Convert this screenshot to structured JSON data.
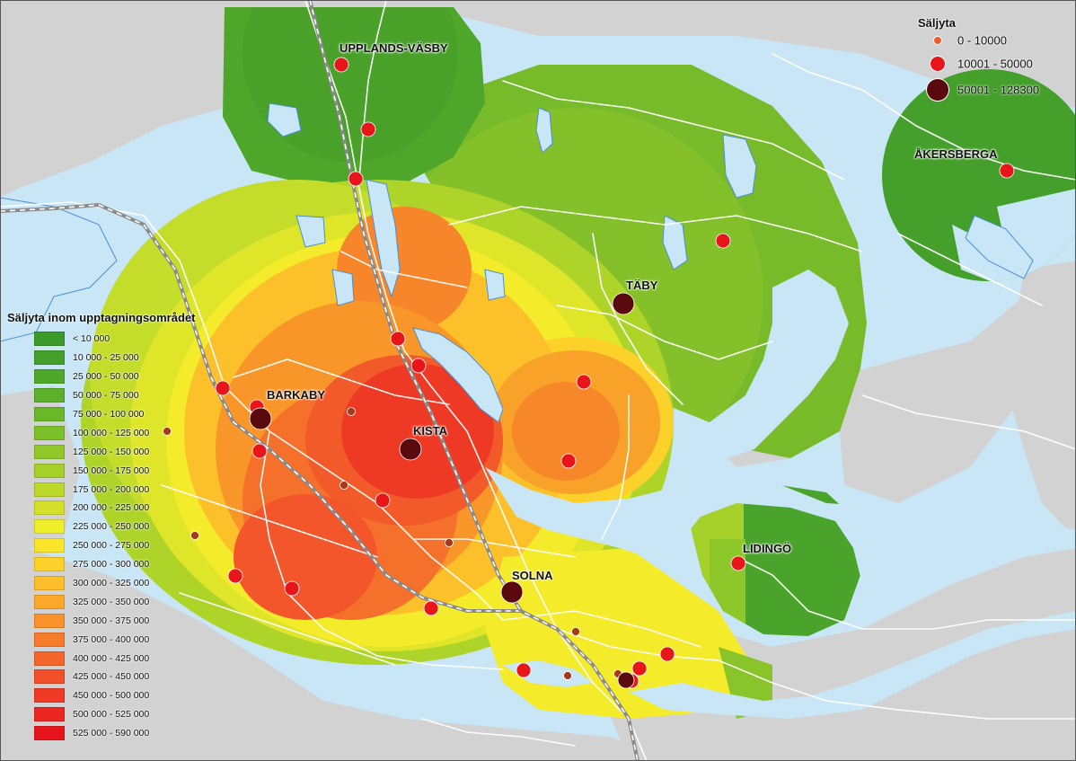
{
  "map": {
    "places": [
      {
        "name": "UPPLANDS-VÄSBY"
      },
      {
        "name": "ÅKERSBERGA"
      },
      {
        "name": "TÄBY"
      },
      {
        "name": "BARKABY"
      },
      {
        "name": "KISTA"
      },
      {
        "name": "SOLNA"
      },
      {
        "name": "LIDINGÖ"
      }
    ]
  },
  "legend_size": {
    "title": "Säljyta",
    "items": [
      {
        "label": "0 - 10000",
        "color": "#f05a28"
      },
      {
        "label": "10001 - 50000",
        "color": "#e8151a"
      },
      {
        "label": "50001 - 128300",
        "color": "#5a0a0e"
      }
    ]
  },
  "legend_area": {
    "title": "Säljyta inom upptagningsområdet",
    "items": [
      {
        "label": "< 10 000",
        "color": "#3a9a2a"
      },
      {
        "label": "10 000 - 25 000",
        "color": "#44a02a"
      },
      {
        "label": "25 000 - 50 000",
        "color": "#4fa82a"
      },
      {
        "label": "50 000 - 75 000",
        "color": "#5cb02a"
      },
      {
        "label": "75 000 - 100 000",
        "color": "#6ab82a"
      },
      {
        "label": "100 000 - 125 000",
        "color": "#7cc02a"
      },
      {
        "label": "125 000 - 150 000",
        "color": "#90c82a"
      },
      {
        "label": "150 000 - 175 000",
        "color": "#a6d02a"
      },
      {
        "label": "175 000 - 200 000",
        "color": "#bcd82a"
      },
      {
        "label": "200 000 - 225 000",
        "color": "#d4e02a"
      },
      {
        "label": "225 000 - 250 000",
        "color": "#eeee2a"
      },
      {
        "label": "250 000 - 275 000",
        "color": "#fae52a"
      },
      {
        "label": "275 000 - 300 000",
        "color": "#fcd22a"
      },
      {
        "label": "300 000 - 325 000",
        "color": "#fcbe2a"
      },
      {
        "label": "325 000 - 350 000",
        "color": "#fba82a"
      },
      {
        "label": "350 000 - 375 000",
        "color": "#f9922a"
      },
      {
        "label": "375 000 - 400 000",
        "color": "#f77c2a"
      },
      {
        "label": "400 000 - 425 000",
        "color": "#f5662a"
      },
      {
        "label": "425 000 - 450 000",
        "color": "#f2502a"
      },
      {
        "label": "450 000 - 500 000",
        "color": "#ef3a26"
      },
      {
        "label": "500 000 - 525 000",
        "color": "#ec2622"
      },
      {
        "label": "525 000 - 590 000",
        "color": "#e8141c"
      }
    ]
  },
  "colors": {
    "water": "#c8e6f6",
    "land": "#d2d2d2",
    "road": "#ffffff",
    "railway": "#9a9a9a"
  }
}
